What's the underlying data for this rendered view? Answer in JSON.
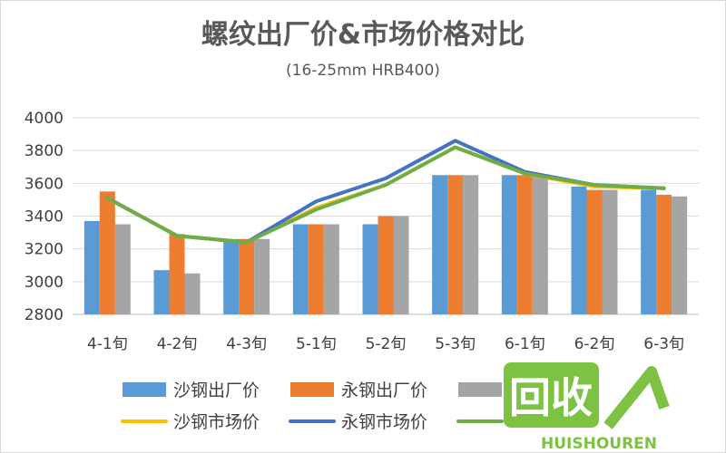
{
  "chart_data": {
    "type": "bar",
    "title": "螺纹出厂价&市场价格对比",
    "subtitle": "(16-25mm HRB400)",
    "categories": [
      "4-1旬",
      "4-2旬",
      "4-3旬",
      "5-1旬",
      "5-2旬",
      "5-3旬",
      "6-1旬",
      "6-2旬",
      "6-3旬"
    ],
    "ylim": [
      2800,
      4000
    ],
    "yticks": [
      2800,
      3000,
      3200,
      3400,
      3600,
      3800,
      4000
    ],
    "grid": true,
    "legend_position": "bottom",
    "bar_series": [
      {
        "name": "沙钢出厂价",
        "color": "#5B9BD5",
        "values": [
          3370,
          3070,
          3260,
          3350,
          3350,
          3650,
          3650,
          3580,
          3560
        ]
      },
      {
        "name": "永钢出厂价",
        "color": "#ED7D31",
        "values": [
          3550,
          3290,
          3260,
          3350,
          3400,
          3650,
          3650,
          3560,
          3530
        ]
      },
      {
        "name": "",
        "color": "#A5A5A5",
        "values": [
          3350,
          3050,
          3260,
          3350,
          3400,
          3650,
          3640,
          3560,
          3520
        ]
      }
    ],
    "line_series": [
      {
        "name": "沙钢市场价",
        "color": "#FFC000",
        "values": [
          3510,
          3280,
          3240,
          3450,
          3590,
          3820,
          3660,
          3580,
          3570
        ]
      },
      {
        "name": "永钢市场价",
        "color": "#4472C4",
        "values": [
          3510,
          3280,
          3240,
          3490,
          3630,
          3860,
          3670,
          3590,
          3570
        ]
      },
      {
        "name": "",
        "color": "#70AD47",
        "values": [
          3510,
          3280,
          3240,
          3440,
          3590,
          3820,
          3660,
          3590,
          3570
        ]
      }
    ]
  },
  "watermark": {
    "logo_text": "回收",
    "brand_text": "HUISHOUREN",
    "color": "#7DC242"
  }
}
